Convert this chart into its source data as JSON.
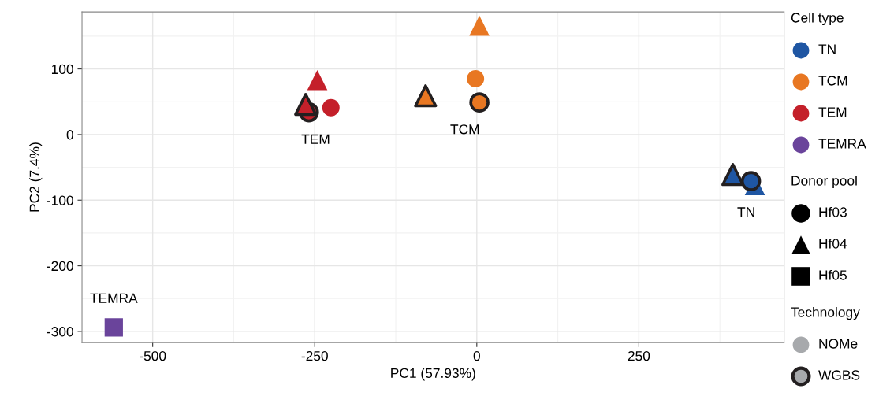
{
  "chart_data": {
    "type": "scatter",
    "xlabel": "PC1 (57.93%)",
    "ylabel": "PC2 (7.4%)",
    "xlim": [
      -609,
      474
    ],
    "xticks": [
      -500,
      -250,
      0,
      250
    ],
    "ylim": [
      -317,
      187
    ],
    "yticks": [
      -300,
      -200,
      -100,
      0,
      100
    ],
    "grid": true,
    "series": [
      {
        "name": "TN",
        "color": "#1f56a3",
        "marker": "triangle",
        "x": [
          429
        ],
        "values": [
          -77
        ]
      },
      {
        "color": "#1f56a3",
        "marker": "circle",
        "line_style": "solid",
        "x": [
          423
        ],
        "values": [
          -71
        ]
      },
      {
        "color": "#1f56a3",
        "marker": "triangle",
        "line_style": "solid",
        "x": [
          395
        ],
        "values": [
          -61
        ]
      },
      {
        "name": "TCM",
        "color": "#e87722",
        "marker": "circle",
        "x": [
          -2
        ],
        "values": [
          85
        ]
      },
      {
        "color": "#e87722",
        "marker": "triangle",
        "x": [
          4
        ],
        "values": [
          166
        ]
      },
      {
        "color": "#e87722",
        "marker": "circle",
        "line_style": "solid",
        "x": [
          4
        ],
        "values": [
          49
        ]
      },
      {
        "color": "#e87722",
        "marker": "triangle",
        "line_style": "solid",
        "x": [
          -79
        ],
        "values": [
          59
        ]
      },
      {
        "color": "#c4202a",
        "marker": "triangle",
        "x": [
          -246
        ],
        "values": [
          83
        ]
      },
      {
        "color": "#c4202a",
        "marker": "circle",
        "x": [
          -225
        ],
        "values": [
          41
        ]
      },
      {
        "name": "TEM",
        "color": "#c4202a",
        "marker": "circle",
        "line_style": "solid",
        "x": [
          -259
        ],
        "values": [
          34
        ]
      },
      {
        "color": "#c4202a",
        "marker": "triangle",
        "line_style": "solid",
        "x": [
          -264
        ],
        "values": [
          46
        ]
      },
      {
        "name": "TEMRA",
        "color": "#6a449b",
        "marker": "square",
        "x": [
          -560
        ],
        "values": [
          -294
        ]
      }
    ],
    "annotations": [
      "Cell type",
      "TN",
      "TCM",
      "TEM",
      "TEMRA",
      "Donor pool",
      "Hf03",
      "Hf04",
      "Hf05",
      "Technology",
      "NOMe",
      "WGBS"
    ]
  }
}
